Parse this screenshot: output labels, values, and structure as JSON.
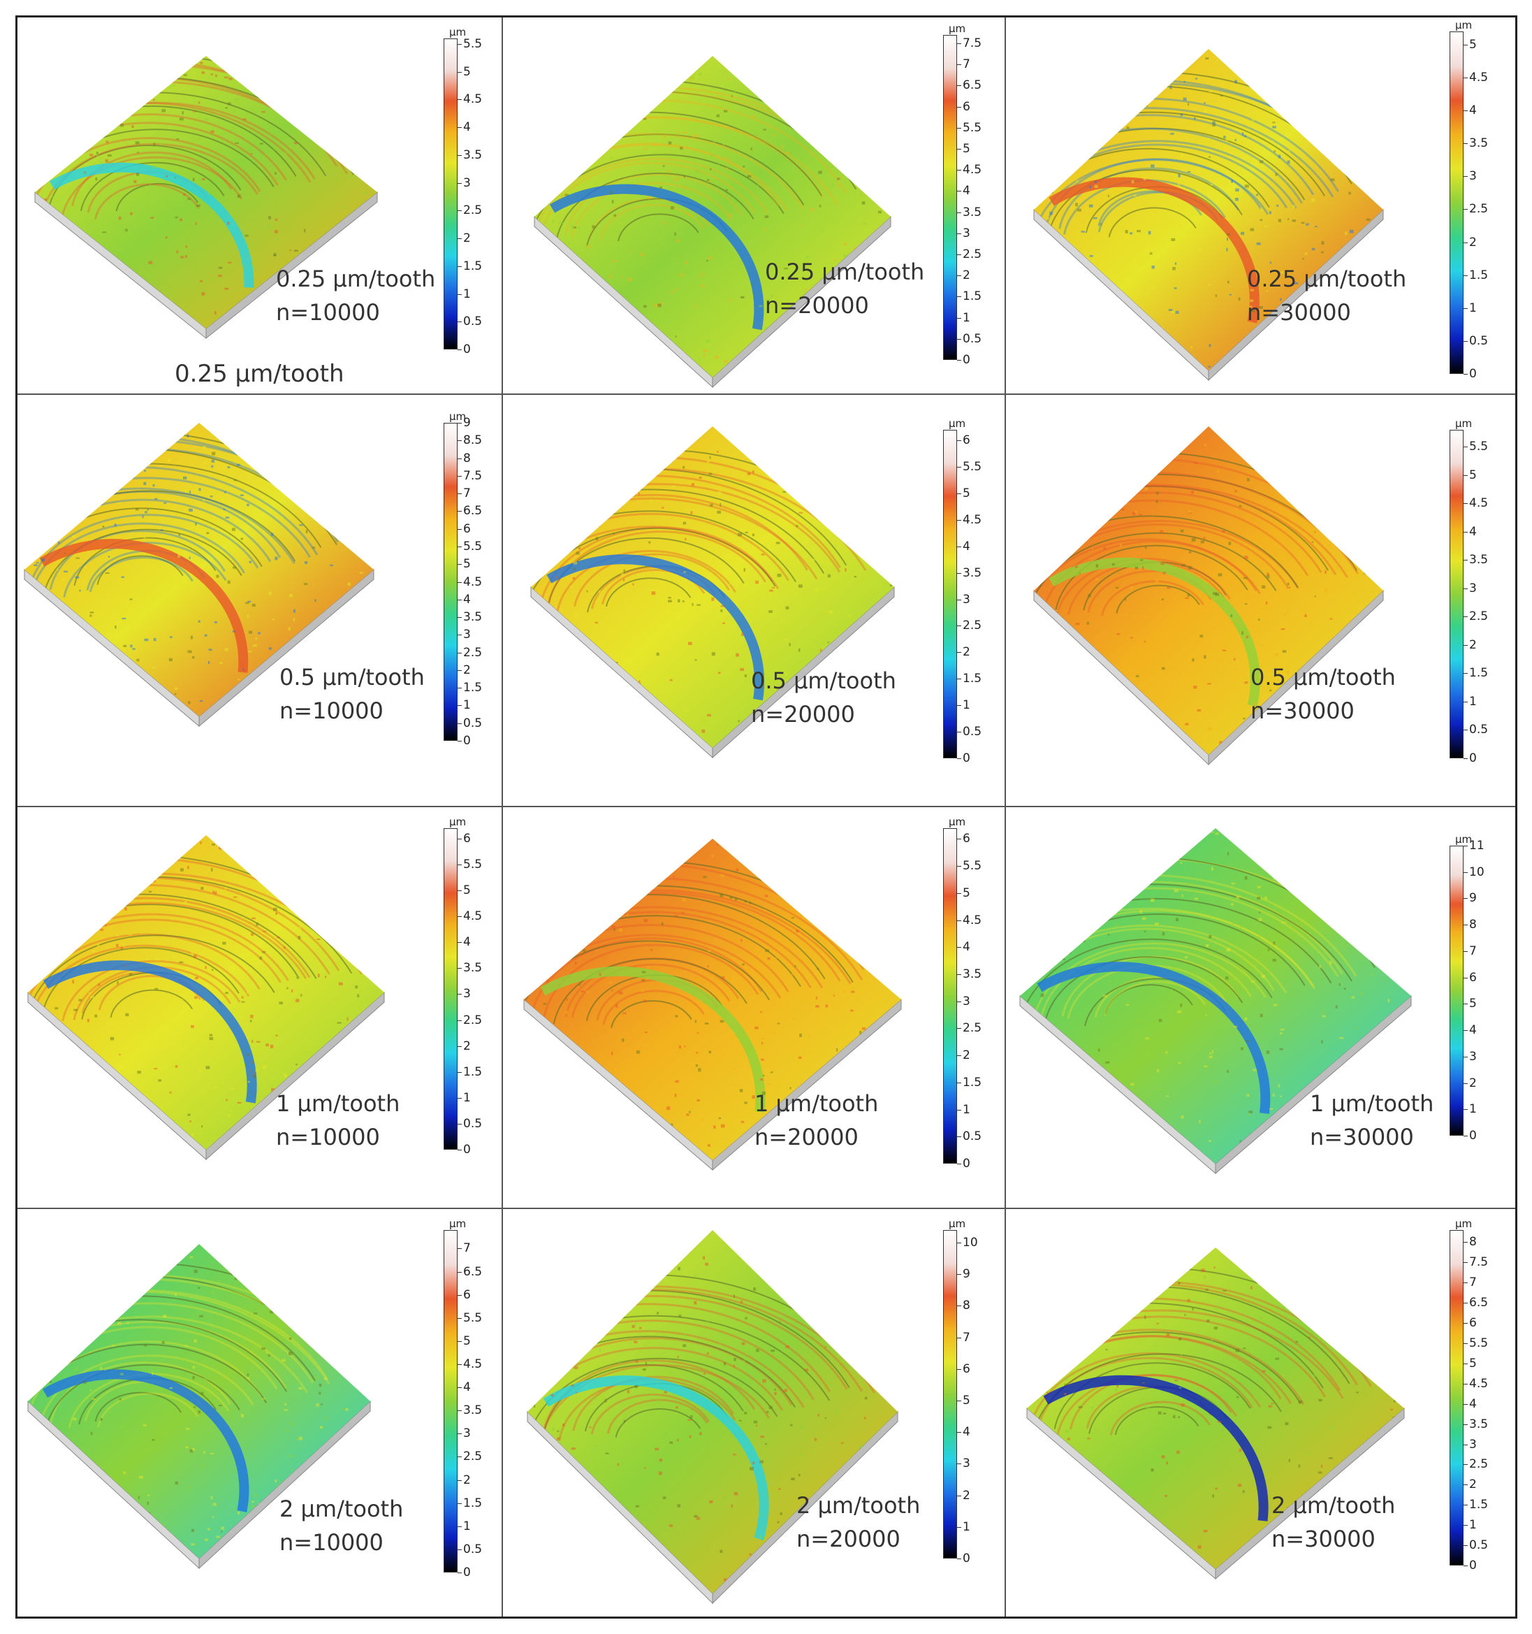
{
  "figure": {
    "colorbar_unit": "μm",
    "extra_label": "0.25 μm/tooth",
    "cells": [
      {
        "feed": "0.25 μm/tooth",
        "speed": "n=10000",
        "ticks": [
          "5.5",
          "5",
          "4.5",
          "4",
          "3.5",
          "3",
          "2.5",
          "2",
          "1.5",
          "1",
          "0.5",
          "0"
        ],
        "max": 5.6,
        "palette": "yellowgreen"
      },
      {
        "feed": "0.25 μm/tooth",
        "speed": "n=20000",
        "ticks": [
          "7.5",
          "7",
          "6.5",
          "6",
          "5.5",
          "5",
          "4.5",
          "4",
          "3.5",
          "3",
          "2.5",
          "2",
          "1.5",
          "1",
          "0.5",
          "0"
        ],
        "max": 7.7,
        "palette": "yellow"
      },
      {
        "feed": "0.25 μm/tooth",
        "speed": "n=30000",
        "ticks": [
          "5",
          "4.5",
          "4",
          "3.5",
          "3",
          "2.5",
          "2",
          "1.5",
          "1",
          "0.5",
          "0"
        ],
        "max": 5.2,
        "palette": "orange"
      },
      {
        "feed": "0.5 μm/tooth",
        "speed": "n=10000",
        "ticks": [
          "9",
          "8.5",
          "8",
          "7.5",
          "7",
          "6.5",
          "6",
          "5.5",
          "5",
          "4.5",
          "4",
          "3.5",
          "3",
          "2.5",
          "2",
          "1.5",
          "1",
          "0.5",
          "0"
        ],
        "max": 9.0,
        "palette": "orange"
      },
      {
        "feed": "0.5 μm/tooth",
        "speed": "n=20000",
        "ticks": [
          "6",
          "5.5",
          "5",
          "4.5",
          "4",
          "3.5",
          "3",
          "2.5",
          "2",
          "1.5",
          "1",
          "0.5",
          "0"
        ],
        "max": 6.2,
        "palette": "orangearc"
      },
      {
        "feed": "0.5 μm/tooth",
        "speed": "n=30000",
        "ticks": [
          "5.5",
          "5",
          "4.5",
          "4",
          "3.5",
          "3",
          "2.5",
          "2",
          "1.5",
          "1",
          "0.5",
          "0"
        ],
        "max": 5.8,
        "palette": "redorange"
      },
      {
        "feed": "1 μm/tooth",
        "speed": "n=10000",
        "ticks": [
          "6",
          "5.5",
          "5",
          "4.5",
          "4",
          "3.5",
          "3",
          "2.5",
          "2",
          "1.5",
          "1",
          "0.5",
          "0"
        ],
        "max": 6.2,
        "palette": "orangearc"
      },
      {
        "feed": "1 μm/tooth",
        "speed": "n=20000",
        "ticks": [
          "6",
          "5.5",
          "5",
          "4.5",
          "4",
          "3.5",
          "3",
          "2.5",
          "2",
          "1.5",
          "1",
          "0.5",
          "0"
        ],
        "max": 6.2,
        "palette": "redorange"
      },
      {
        "feed": "1 μm/tooth",
        "speed": "n=30000",
        "ticks": [
          "11",
          "10",
          "9",
          "8",
          "7",
          "6",
          "5",
          "4",
          "3",
          "2",
          "1",
          "0"
        ],
        "max": 11.0,
        "palette": "cyan"
      },
      {
        "feed": "2 μm/tooth",
        "speed": "n=10000",
        "ticks": [
          "7",
          "6.5",
          "6",
          "5.5",
          "5",
          "4.5",
          "4",
          "3.5",
          "3",
          "2.5",
          "2",
          "1.5",
          "1",
          "0.5",
          "0"
        ],
        "max": 7.4,
        "palette": "cyan"
      },
      {
        "feed": "2 μm/tooth",
        "speed": "n=20000",
        "ticks": [
          "10",
          "9",
          "8",
          "7",
          "6",
          "5",
          "4",
          "3",
          "2",
          "1",
          "0"
        ],
        "max": 10.4,
        "palette": "yellowgreen"
      },
      {
        "feed": "2 μm/tooth",
        "speed": "n=30000",
        "ticks": [
          "8",
          "7.5",
          "7",
          "6.5",
          "6",
          "5.5",
          "5",
          "4.5",
          "4",
          "3.5",
          "3",
          "2.5",
          "2",
          "1.5",
          "1",
          "0.5",
          "0"
        ],
        "max": 8.3,
        "palette": "bluearc"
      }
    ]
  },
  "colors": {
    "border": "#222222",
    "colormap": [
      "#000000",
      "#0a1fbf",
      "#1e74e6",
      "#27d2e6",
      "#37d28a",
      "#8fd23a",
      "#e6e62a",
      "#f2b21e",
      "#e8562a",
      "#f2dcd8",
      "#ffffff"
    ]
  }
}
